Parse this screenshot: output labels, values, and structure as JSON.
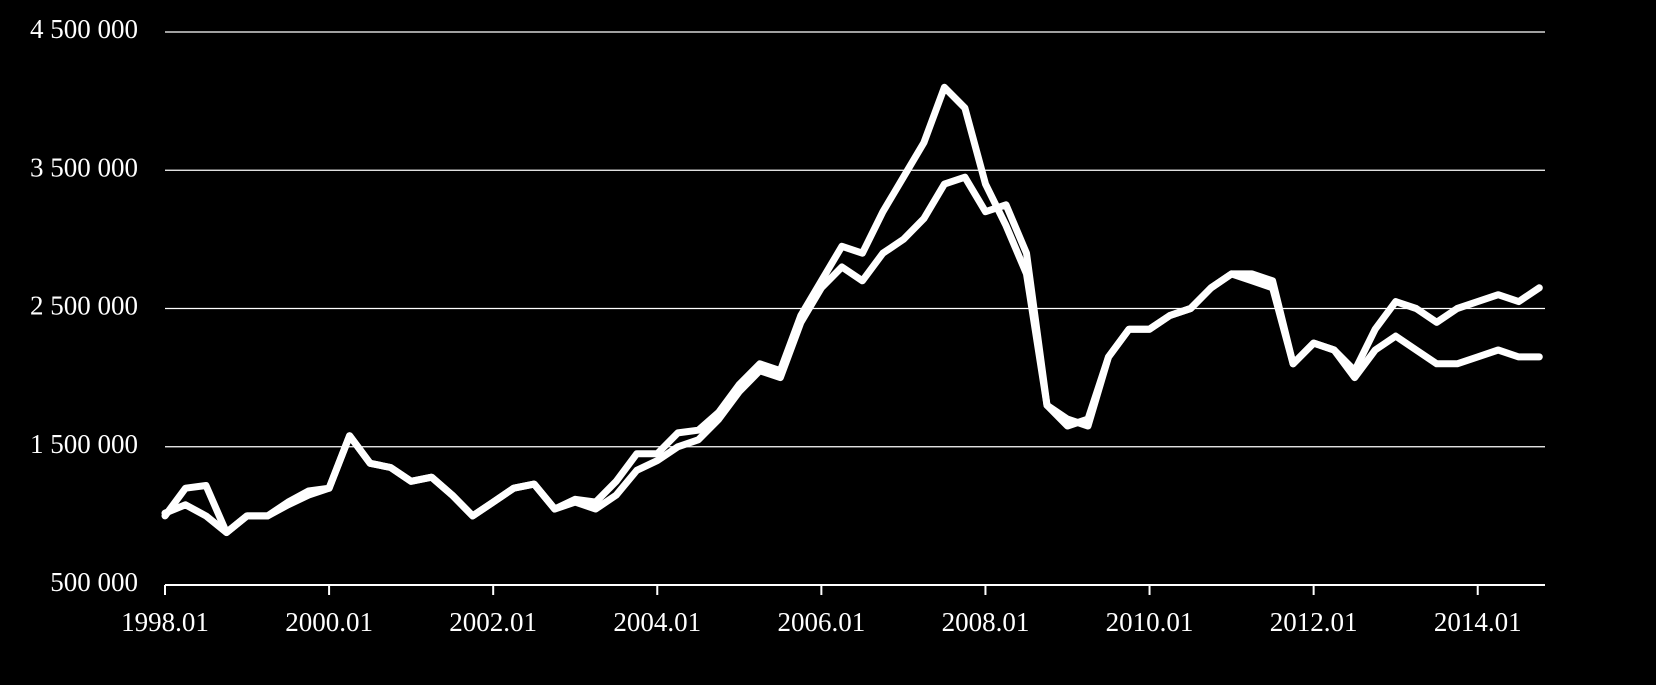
{
  "chart_data": {
    "type": "line",
    "x": [
      1998,
      1998.25,
      1998.5,
      1998.75,
      1999,
      1999.25,
      1999.5,
      1999.75,
      2000,
      2000.25,
      2000.5,
      2000.75,
      2001,
      2001.25,
      2001.5,
      2001.75,
      2002,
      2002.25,
      2002.5,
      2002.75,
      2003,
      2003.25,
      2003.5,
      2003.75,
      2004,
      2004.25,
      2004.5,
      2004.75,
      2005,
      2005.25,
      2005.5,
      2005.75,
      2006,
      2006.25,
      2006.5,
      2006.75,
      2007,
      2007.25,
      2007.5,
      2007.75,
      2008,
      2008.25,
      2008.5,
      2008.75,
      2009,
      2009.25,
      2009.5,
      2009.75,
      2010,
      2010.25,
      2010.5,
      2010.75,
      2011,
      2011.25,
      2011.5,
      2011.75,
      2012,
      2012.25,
      2012.5,
      2012.75,
      2013,
      2013.25,
      2013.5,
      2013.75,
      2014,
      2014.25,
      2014.5,
      2014.75
    ],
    "series": [
      {
        "color": "#ffffff",
        "values": [
          1000000,
          1200000,
          1220000,
          880000,
          1000000,
          1000000,
          1100000,
          1180000,
          1200000,
          1580000,
          1380000,
          1350000,
          1250000,
          1280000,
          1150000,
          1000000,
          1100000,
          1200000,
          1230000,
          1050000,
          1120000,
          1100000,
          1250000,
          1450000,
          1450000,
          1600000,
          1620000,
          1750000,
          1950000,
          2100000,
          2050000,
          2450000,
          2700000,
          2950000,
          2900000,
          3200000,
          3450000,
          3700000,
          4100000,
          3950000,
          3400000,
          3100000,
          2750000,
          1800000,
          1700000,
          1650000,
          2150000,
          2350000,
          2350000,
          2450000,
          2500000,
          2650000,
          2750000,
          2750000,
          2700000,
          2100000,
          2250000,
          2200000,
          2050000,
          2350000,
          2550000,
          2500000,
          2400000,
          2500000,
          2550000,
          2600000,
          2550000,
          2650000
        ]
      },
      {
        "color": "#ffffff",
        "values": [
          1020000,
          1080000,
          1000000,
          880000,
          1000000,
          1000000,
          1080000,
          1150000,
          1200000,
          1580000,
          1380000,
          1350000,
          1250000,
          1280000,
          1150000,
          1000000,
          1100000,
          1200000,
          1230000,
          1050000,
          1100000,
          1050000,
          1150000,
          1330000,
          1400000,
          1500000,
          1550000,
          1700000,
          1900000,
          2050000,
          2000000,
          2400000,
          2650000,
          2800000,
          2700000,
          2900000,
          3000000,
          3150000,
          3400000,
          3450000,
          3200000,
          3250000,
          2900000,
          1800000,
          1650000,
          1700000,
          2150000,
          2350000,
          2350000,
          2450000,
          2500000,
          2650000,
          2750000,
          2700000,
          2650000,
          2100000,
          2250000,
          2200000,
          2000000,
          2200000,
          2300000,
          2200000,
          2100000,
          2100000,
          2150000,
          2200000,
          2150000,
          2150000
        ]
      }
    ],
    "xlim": [
      1998,
      2014.82
    ],
    "xticks": [
      {
        "value": 1998,
        "label": "1998.01"
      },
      {
        "value": 2000,
        "label": "2000.01"
      },
      {
        "value": 2002,
        "label": "2002.01"
      },
      {
        "value": 2004,
        "label": "2004.01"
      },
      {
        "value": 2006,
        "label": "2006.01"
      },
      {
        "value": 2008,
        "label": "2008.01"
      },
      {
        "value": 2010,
        "label": "2010.01"
      },
      {
        "value": 2012,
        "label": "2012.01"
      },
      {
        "value": 2014,
        "label": "2014.01"
      }
    ],
    "ylim": [
      500000,
      4500000
    ],
    "yticks": [
      {
        "value": 500000,
        "label": "500 000"
      },
      {
        "value": 1500000,
        "label": "1 500 000"
      },
      {
        "value": 2500000,
        "label": "2 500 000"
      },
      {
        "value": 3500000,
        "label": "3 500 000"
      },
      {
        "value": 4500000,
        "label": "4 500 000"
      }
    ],
    "grid": true
  }
}
